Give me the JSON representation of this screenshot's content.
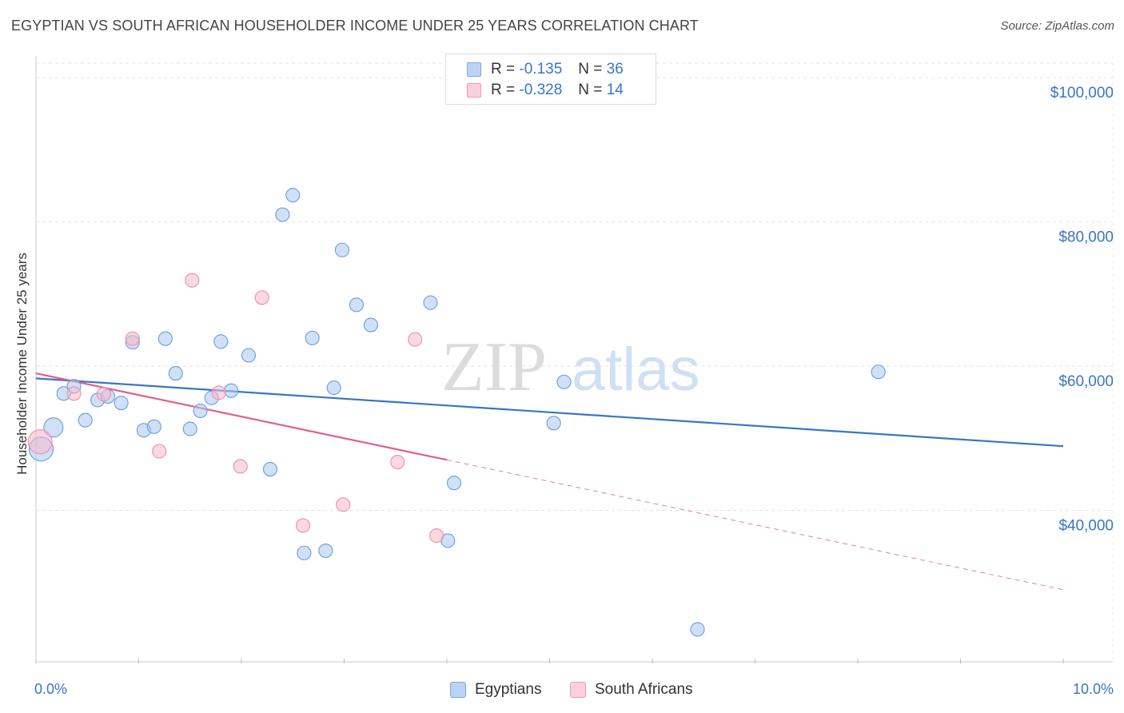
{
  "title": "EGYPTIAN VS SOUTH AFRICAN HOUSEHOLDER INCOME UNDER 25 YEARS CORRELATION CHART",
  "source": "Source: ZipAtlas.com",
  "watermark": {
    "zip": "ZIP",
    "atlas": "atlas"
  },
  "legend": {
    "rows": [
      {
        "r_label": "R = ",
        "r_value": "-0.135",
        "n_label": "N = ",
        "n_value": "36",
        "color": "#a9c8f0"
      },
      {
        "r_label": "R = ",
        "r_value": "-0.328",
        "n_label": "N = ",
        "n_value": "14",
        "color": "#f7b8ca"
      }
    ]
  },
  "bottom_legend": {
    "egyptians": "Egyptians",
    "south_africans": "South Africans"
  },
  "chart_data": {
    "type": "scatter",
    "title": "EGYPTIAN VS SOUTH AFRICAN HOUSEHOLDER INCOME UNDER 25 YEARS CORRELATION CHART",
    "xlabel": "",
    "ylabel": "Householder Income Under 25 years",
    "xlim": [
      0,
      10
    ],
    "ylim": [
      19000,
      103000
    ],
    "x_tick_labels": [
      "0.0%",
      "10.0%"
    ],
    "y_ticks": [
      40000,
      60000,
      80000,
      100000
    ],
    "y_tick_labels": [
      "$40,000",
      "$60,000",
      "$80,000",
      "$100,000"
    ],
    "grid": true,
    "legend_position": "top-center",
    "series": [
      {
        "name": "Egyptians",
        "color": "#a9c8f0",
        "stroke": "#6a9be0",
        "trend": {
          "x0": 0,
          "y0": 58300,
          "x1": 10,
          "y1": 48900,
          "color": "#3a74c9"
        },
        "points": [
          {
            "x": 0.05,
            "y": 48500,
            "size": "large"
          },
          {
            "x": 0.17,
            "y": 51500,
            "size": "medium"
          },
          {
            "x": 0.27,
            "y": 56200
          },
          {
            "x": 0.37,
            "y": 57200
          },
          {
            "x": 0.48,
            "y": 52500
          },
          {
            "x": 0.6,
            "y": 55300
          },
          {
            "x": 0.7,
            "y": 55800
          },
          {
            "x": 0.83,
            "y": 54900
          },
          {
            "x": 0.94,
            "y": 63300
          },
          {
            "x": 1.05,
            "y": 51100
          },
          {
            "x": 1.15,
            "y": 51600
          },
          {
            "x": 1.26,
            "y": 63800
          },
          {
            "x": 1.36,
            "y": 59000
          },
          {
            "x": 1.5,
            "y": 51300
          },
          {
            "x": 1.6,
            "y": 53800
          },
          {
            "x": 1.71,
            "y": 55600
          },
          {
            "x": 1.8,
            "y": 63400
          },
          {
            "x": 1.9,
            "y": 56600
          },
          {
            "x": 2.07,
            "y": 61500
          },
          {
            "x": 2.28,
            "y": 45700
          },
          {
            "x": 2.4,
            "y": 81000
          },
          {
            "x": 2.5,
            "y": 83700
          },
          {
            "x": 2.61,
            "y": 34100
          },
          {
            "x": 2.69,
            "y": 63900
          },
          {
            "x": 2.82,
            "y": 34400
          },
          {
            "x": 2.9,
            "y": 57000
          },
          {
            "x": 2.98,
            "y": 76100
          },
          {
            "x": 3.12,
            "y": 68500
          },
          {
            "x": 3.26,
            "y": 65700
          },
          {
            "x": 3.84,
            "y": 68800
          },
          {
            "x": 4.01,
            "y": 35800
          },
          {
            "x": 4.07,
            "y": 43800
          },
          {
            "x": 5.04,
            "y": 52100
          },
          {
            "x": 5.14,
            "y": 57800
          },
          {
            "x": 6.44,
            "y": 23500
          },
          {
            "x": 8.2,
            "y": 59200
          }
        ]
      },
      {
        "name": "South Africans",
        "color": "#f7b8ca",
        "stroke": "#ec8fa8",
        "trend": {
          "x0": 0,
          "y0": 59000,
          "x1": 4,
          "y1": 47000,
          "color": "#e0608a",
          "dashed_to": {
            "x": 10,
            "y": 29000
          }
        },
        "points": [
          {
            "x": 0.04,
            "y": 49500,
            "size": "large"
          },
          {
            "x": 0.37,
            "y": 56200
          },
          {
            "x": 0.66,
            "y": 56100
          },
          {
            "x": 0.94,
            "y": 63800
          },
          {
            "x": 1.2,
            "y": 48200
          },
          {
            "x": 1.52,
            "y": 71900
          },
          {
            "x": 1.78,
            "y": 56300
          },
          {
            "x": 1.99,
            "y": 46100
          },
          {
            "x": 2.2,
            "y": 69500
          },
          {
            "x": 2.6,
            "y": 37900
          },
          {
            "x": 2.99,
            "y": 40800
          },
          {
            "x": 3.52,
            "y": 46700
          },
          {
            "x": 3.69,
            "y": 63700
          },
          {
            "x": 3.9,
            "y": 36500
          }
        ]
      }
    ]
  }
}
